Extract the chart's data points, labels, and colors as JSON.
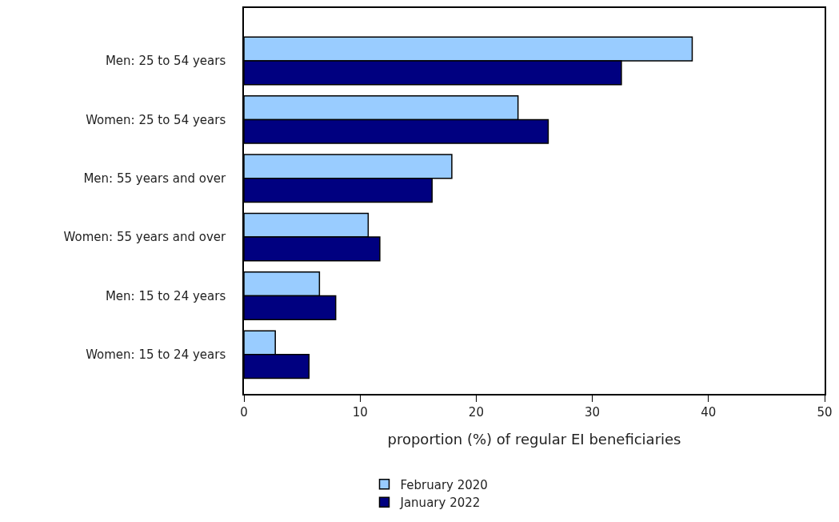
{
  "chart_data": {
    "type": "bar",
    "orientation": "horizontal",
    "categories": [
      "Men: 25 to 54 years",
      "Women: 25 to 54 years",
      "Men: 55 years and over",
      "Women: 55 years and over",
      "Men: 15 to 24 years",
      "Women: 15 to 24 years"
    ],
    "series": [
      {
        "name": "February 2020",
        "color": "#99ccff",
        "values": [
          38.6,
          23.6,
          17.9,
          10.7,
          6.5,
          2.7
        ]
      },
      {
        "name": "January 2022",
        "color": "#000080",
        "values": [
          32.5,
          26.2,
          16.2,
          11.7,
          7.9,
          5.6
        ]
      }
    ],
    "xlabel": "proportion (%) of regular EI beneficiaries",
    "xlim": [
      0,
      50
    ],
    "xticks": [
      0,
      10,
      20,
      30,
      40,
      50
    ],
    "grid": false,
    "legend": "bottom"
  }
}
